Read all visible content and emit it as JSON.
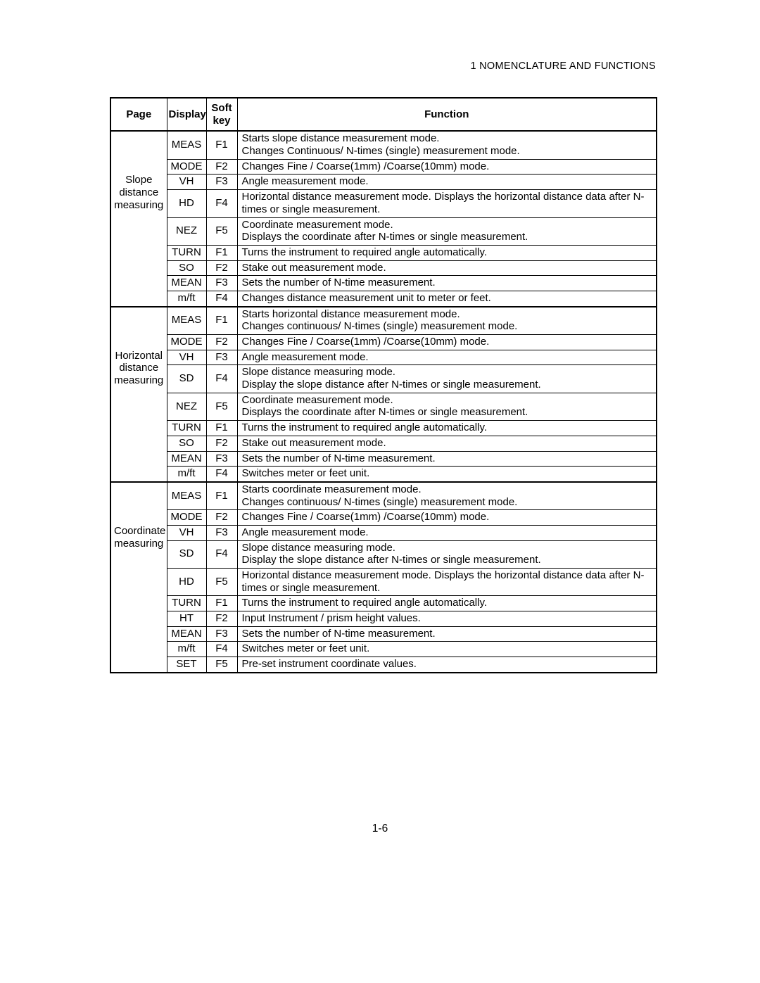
{
  "header": "1   NOMENCLATURE AND FUNCTIONS",
  "footer": "1-6",
  "columns": {
    "page": "Page",
    "display": "Display",
    "softkey_l1": "Soft",
    "softkey_l2": "key",
    "function": "Function"
  },
  "sections": [
    {
      "page_label": "Slope distance measuring",
      "rows": [
        {
          "display": "MEAS",
          "soft": "F1",
          "func": "Starts slope distance measurement mode.\nChanges  Continuous/ N-times (single) measurement mode."
        },
        {
          "display": "MODE",
          "soft": "F2",
          "func": "Changes Fine  / Coarse(1mm) /Coarse(10mm) mode."
        },
        {
          "display": "VH",
          "soft": "F3",
          "func": "Angle measurement mode."
        },
        {
          "display": "HD",
          "soft": "F4",
          "func": "Horizontal distance  measurement mode. Displays the horizontal distance data after N-times or single measurement."
        },
        {
          "display": "NEZ",
          "soft": "F5",
          "func": "Coordinate measurement mode.\nDisplays the coordinate after N-times or single measurement."
        },
        {
          "display": "TURN",
          "soft": "F1",
          "func": "Turns the instrument to required angle automatically."
        },
        {
          "display": "SO",
          "soft": "F2",
          "func": "Stake out measurement mode."
        },
        {
          "display": "MEAN",
          "soft": "F3",
          "func": "Sets the number of N-time measurement."
        },
        {
          "display": "m/ft",
          "soft": "F4",
          "func": "Changes distance measurement unit to meter or feet."
        }
      ]
    },
    {
      "page_label": "Horizontal distance measuring",
      "rows": [
        {
          "display": "MEAS",
          "soft": "F1",
          "func": "Starts horizontal distance measurement mode.\nChanges continuous/ N-times (single) measurement mode."
        },
        {
          "display": "MODE",
          "soft": "F2",
          "func": "Changes Fine  / Coarse(1mm) /Coarse(10mm) mode."
        },
        {
          "display": "VH",
          "soft": "F3",
          "func": "Angle measurement mode."
        },
        {
          "display": "SD",
          "soft": "F4",
          "func": "Slope distance measuring mode.\nDisplay the slope distance after N-times or single measurement."
        },
        {
          "display": "NEZ",
          "soft": "F5",
          "func": "Coordinate measurement mode.\nDisplays the coordinate after N-times or single measurement."
        },
        {
          "display": "TURN",
          "soft": "F1",
          "func": "Turns the instrument to required angle automatically."
        },
        {
          "display": "SO",
          "soft": "F2",
          "func": "Stake out measurement mode."
        },
        {
          "display": "MEAN",
          "soft": "F3",
          "func": "Sets the number of N-time measurement."
        },
        {
          "display": "m/ft",
          "soft": "F4",
          "func": "Switches meter or feet unit."
        }
      ]
    },
    {
      "page_label": "Coordinate measuring",
      "rows": [
        {
          "display": "MEAS",
          "soft": "F1",
          "func": "Starts coordinate measurement mode.\nChanges continuous/ N-times (single) measurement mode."
        },
        {
          "display": "MODE",
          "soft": "F2",
          "func": "Changes Fine  / Coarse(1mm) /Coarse(10mm) mode."
        },
        {
          "display": "VH",
          "soft": "F3",
          "func": "Angle measurement mode."
        },
        {
          "display": "SD",
          "soft": "F4",
          "func": "Slope distance measuring mode.\nDisplay the slope distance after N-times or single measurement."
        },
        {
          "display": "HD",
          "soft": "F5",
          "func": "Horizontal distance  measurement mode. Displays the horizontal distance data after N-times or single measurement."
        },
        {
          "display": "TURN",
          "soft": "F1",
          "func": "Turns the instrument to required angle automatically."
        },
        {
          "display": "HT",
          "soft": "F2",
          "func": "Input Instrument / prism height values."
        },
        {
          "display": "MEAN",
          "soft": "F3",
          "func": "Sets the number of N-time measurement."
        },
        {
          "display": "m/ft",
          "soft": "F4",
          "func": "Switches meter or feet unit."
        },
        {
          "display": "SET",
          "soft": "F5",
          "func": "Pre-set instrument coordinate values."
        }
      ]
    }
  ]
}
